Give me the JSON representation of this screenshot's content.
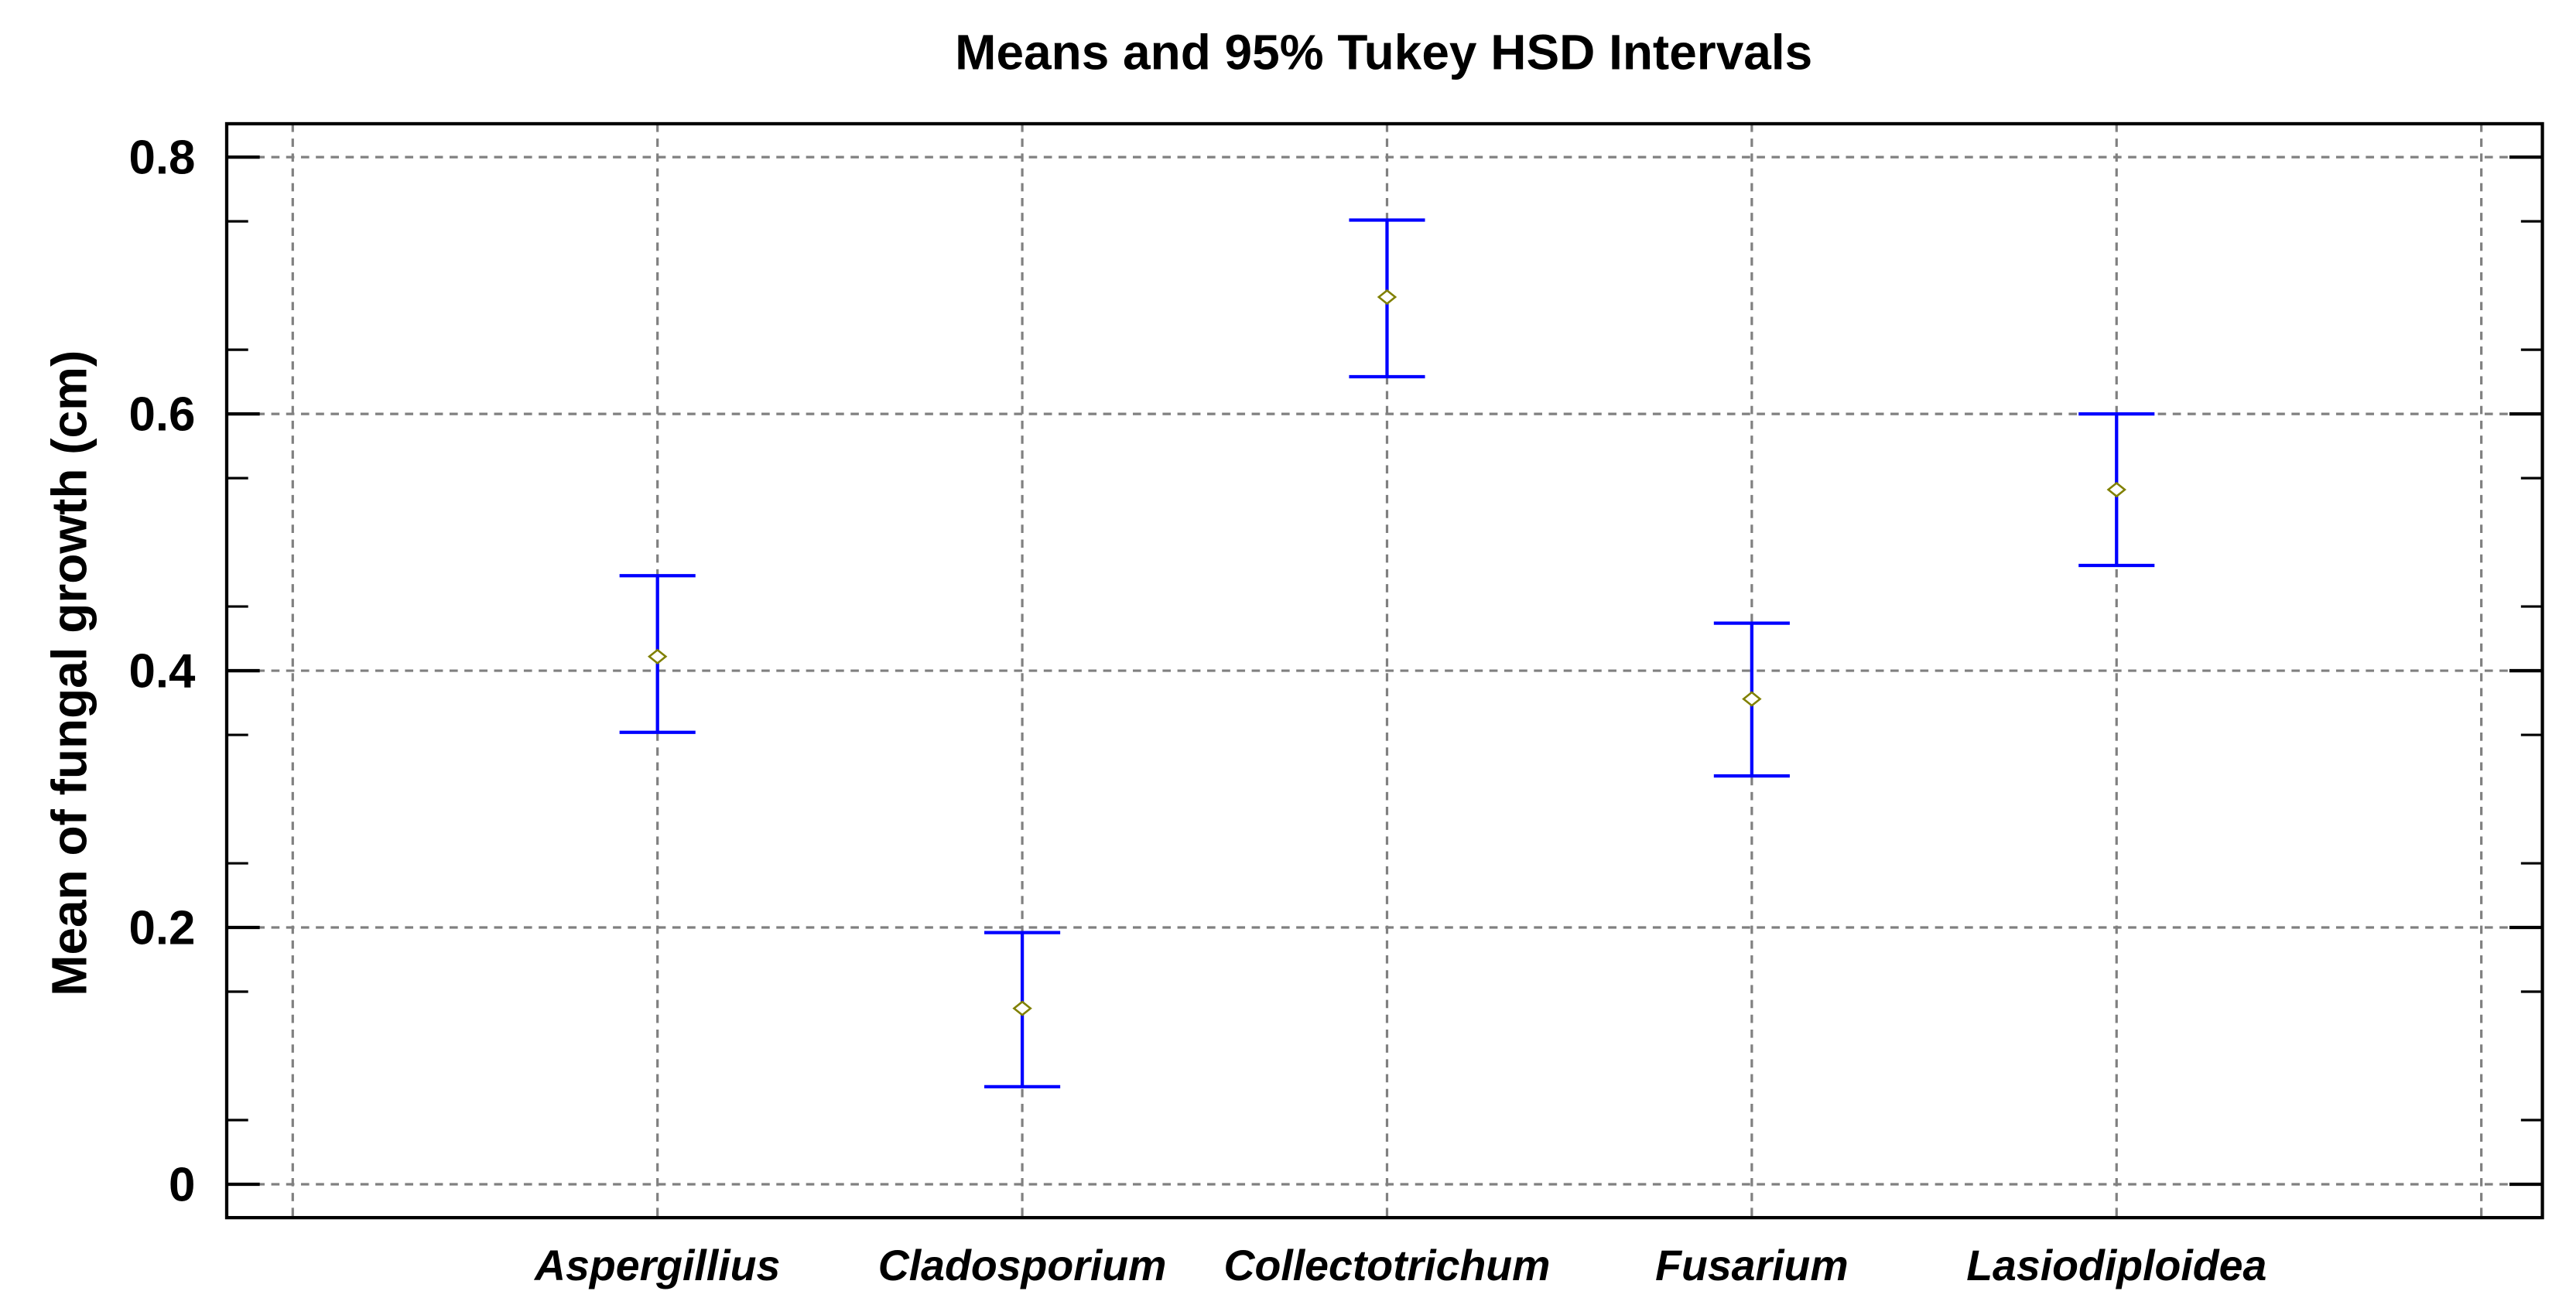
{
  "chart_data": {
    "type": "errorbar",
    "title": "Means and 95% Tukey HSD Intervals",
    "xlabel": "",
    "ylabel": "Mean of fungal growth (cm)",
    "categories": [
      "Aspergillius",
      "Cladosporium",
      "Collectotrichum",
      "Fusarium",
      "Lasiodiploidea"
    ],
    "means": [
      0.411,
      0.137,
      0.691,
      0.378,
      0.541
    ],
    "lower": [
      0.352,
      0.076,
      0.629,
      0.318,
      0.482
    ],
    "upper": [
      0.474,
      0.196,
      0.751,
      0.437,
      0.6
    ],
    "ylim": [
      -0.026,
      0.826
    ],
    "yticks": [
      "0",
      "0.2",
      "0.4",
      "0.6",
      "0.8"
    ],
    "grid": true,
    "colors": {
      "interval": "#0000ff",
      "mean_marker": "#808000",
      "grid": "#808080"
    }
  }
}
